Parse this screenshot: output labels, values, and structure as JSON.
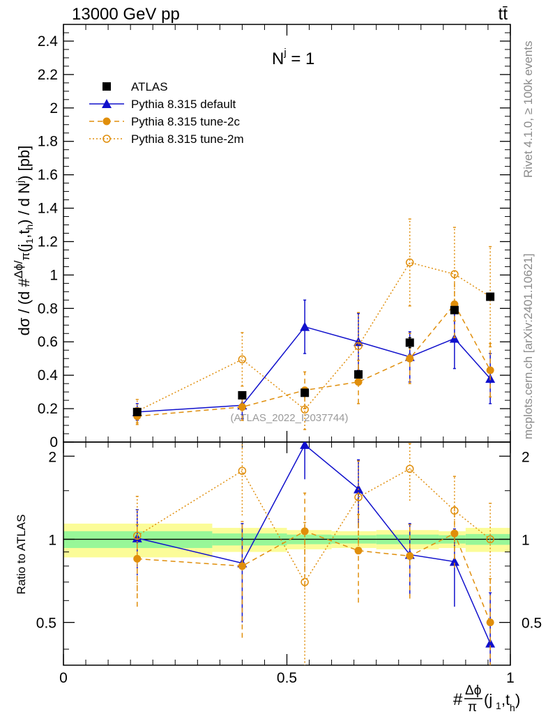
{
  "header": {
    "energy_label": "13000 GeV pp",
    "process_label": "tt̄"
  },
  "side_texts": {
    "rivet": "Rivet 4.1.0, ≥ 100k events",
    "mcplots": "mcplots.cern.ch [arXiv:2401.10621]"
  },
  "chart_data": {
    "type": "scatter",
    "title": "Nʲ = 1",
    "analysis_tag": "(ATLAS_2022_I2037744)",
    "xlabel": "#Δϕ/π(j1,th)",
    "ylabel": "dσ / (d #Δϕ/π(j1,th) / d Nʲ) [pb]",
    "ratio_ylabel": "Ratio to ATLAS",
    "xlim": [
      0,
      1
    ],
    "ylim": [
      0,
      2.5
    ],
    "ratio_ylim": [
      0.35,
      2.25
    ],
    "x_ticks": [
      0,
      0.5,
      1
    ],
    "x_tick_labels": [
      "0",
      "0.5",
      "1"
    ],
    "y_ticks": [
      0.2,
      0.4,
      0.6,
      0.8,
      1,
      1.2,
      1.4,
      1.6,
      1.8,
      2,
      2.2,
      2.4
    ],
    "y_tick_labels": [
      "0.2",
      "0.4",
      "0.6",
      "0.8",
      "1",
      "1.2",
      "1.4",
      "1.6",
      "1.8",
      "2",
      "2.2",
      "2.4"
    ],
    "y_zero_label": "0",
    "ratio_ticks": [
      0.5,
      1,
      2
    ],
    "ratio_tick_labels": [
      "0.5",
      "1",
      "2"
    ],
    "bin_edges": [
      0,
      0.333,
      0.5,
      0.6,
      0.7,
      0.84,
      0.9,
      1
    ],
    "x": [
      0.165,
      0.4,
      0.54,
      0.66,
      0.775,
      0.875,
      0.955
    ],
    "legend": {
      "placement": "top-left",
      "entries": [
        "ATLAS",
        "Pythia 8.315 default",
        "Pythia 8.315 tune-2c",
        "Pythia 8.315 tune-2m"
      ]
    },
    "series": [
      {
        "name": "ATLAS",
        "color": "#000000",
        "marker": "square",
        "values": [
          0.18,
          0.28,
          0.295,
          0.405,
          0.595,
          0.79,
          0.87
        ],
        "errors": [
          0.01,
          0.02,
          0.02,
          0.02,
          0.03,
          0.02,
          0.02
        ],
        "stat_band": [
          0.07,
          0.05,
          0.04,
          0.035,
          0.04,
          0.035,
          0.045
        ],
        "total_band": [
          0.14,
          0.1,
          0.08,
          0.07,
          0.08,
          0.07,
          0.1
        ]
      },
      {
        "name": "Pythia 8.315 default",
        "color": "#1010cc",
        "marker": "triangle",
        "line": "solid",
        "values": [
          0.18,
          0.22,
          0.69,
          0.6,
          0.51,
          0.62,
          0.38
        ],
        "errors": [
          0.05,
          0.08,
          0.16,
          0.17,
          0.15,
          0.18,
          0.15
        ],
        "ratio": [
          1.01,
          0.82,
          2.2,
          1.52,
          0.88,
          0.83,
          0.42
        ],
        "ratio_errors": [
          0.27,
          0.32,
          0.55,
          0.42,
          0.26,
          0.26,
          0.22
        ]
      },
      {
        "name": "Pythia 8.315 tune-2c",
        "color": "#e08e0b",
        "marker": "circle",
        "line": "dashed",
        "values": [
          0.155,
          0.21,
          0.31,
          0.36,
          0.5,
          0.825,
          0.43
        ],
        "errors": [
          0.05,
          0.08,
          0.11,
          0.13,
          0.15,
          0.2,
          0.16
        ],
        "ratio": [
          0.85,
          0.8,
          1.07,
          0.91,
          0.87,
          1.05,
          0.5
        ],
        "ratio_errors": [
          0.28,
          0.36,
          0.4,
          0.32,
          0.26,
          0.26,
          0.22
        ]
      },
      {
        "name": "Pythia 8.315 tune-2m",
        "color": "#e08e0b",
        "marker": "open-circle",
        "line": "dotted",
        "values": [
          0.185,
          0.495,
          0.195,
          0.575,
          1.075,
          1.005,
          0.87
        ],
        "errors": [
          0.07,
          0.16,
          0.12,
          0.2,
          0.26,
          0.28,
          0.3
        ],
        "ratio": [
          1.03,
          1.77,
          0.7,
          1.42,
          1.8,
          1.27,
          1.0
        ],
        "ratio_errors": [
          0.4,
          0.55,
          0.45,
          0.5,
          0.42,
          0.42,
          0.35
        ]
      }
    ]
  }
}
